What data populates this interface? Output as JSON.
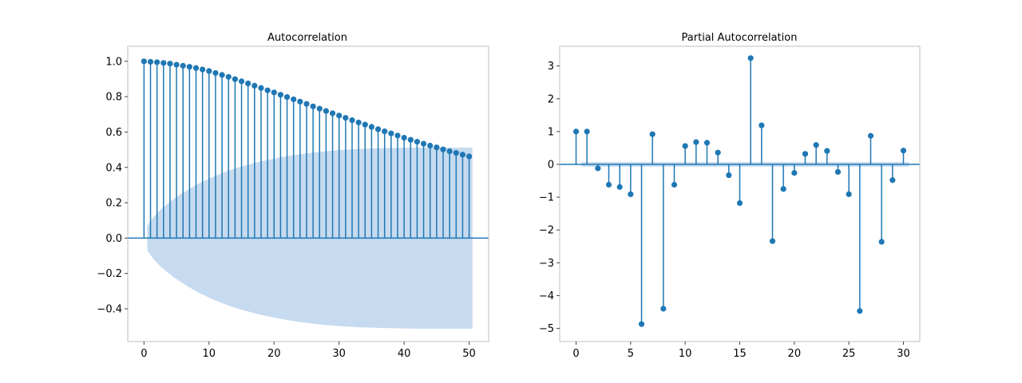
{
  "chart_data": [
    {
      "type": "stem",
      "title": "Autocorrelation",
      "xlabel": "",
      "ylabel": "",
      "xlim": [
        -2.5,
        53
      ],
      "ylim": [
        -0.585,
        1.085
      ],
      "xticks": [
        0,
        10,
        20,
        30,
        40,
        50
      ],
      "yticks": [
        -0.4,
        -0.2,
        0.0,
        0.2,
        0.4,
        0.6,
        0.8,
        1.0
      ],
      "ytick_labels": [
        "−0.4",
        "−0.2",
        "0.0",
        "0.2",
        "0.4",
        "0.6",
        "0.8",
        "1.0"
      ],
      "x": [
        0,
        1,
        2,
        3,
        4,
        5,
        6,
        7,
        8,
        9,
        10,
        11,
        12,
        13,
        14,
        15,
        16,
        17,
        18,
        19,
        20,
        21,
        22,
        23,
        24,
        25,
        26,
        27,
        28,
        29,
        30,
        31,
        32,
        33,
        34,
        35,
        36,
        37,
        38,
        39,
        40,
        41,
        42,
        43,
        44,
        45,
        46,
        47,
        48,
        49,
        50
      ],
      "values": [
        1.0,
        0.997,
        0.995,
        0.991,
        0.987,
        0.981,
        0.975,
        0.969,
        0.962,
        0.954,
        0.945,
        0.934,
        0.923,
        0.912,
        0.899,
        0.887,
        0.875,
        0.862,
        0.849,
        0.836,
        0.824,
        0.811,
        0.798,
        0.785,
        0.772,
        0.759,
        0.745,
        0.732,
        0.719,
        0.706,
        0.693,
        0.68,
        0.667,
        0.654,
        0.642,
        0.629,
        0.616,
        0.604,
        0.592,
        0.58,
        0.568,
        0.556,
        0.545,
        0.534,
        0.523,
        0.513,
        0.502,
        0.491,
        0.482,
        0.472,
        0.462
      ],
      "confidence_band": {
        "x_start": 0.5,
        "x_end": 50.5,
        "upper": [
          0.07,
          0.12,
          0.16,
          0.19,
          0.22,
          0.245,
          0.268,
          0.29,
          0.31,
          0.328,
          0.345,
          0.36,
          0.375,
          0.388,
          0.4,
          0.41,
          0.42,
          0.43,
          0.438,
          0.446,
          0.453,
          0.46,
          0.466,
          0.472,
          0.477,
          0.482,
          0.486,
          0.49,
          0.493,
          0.496,
          0.499,
          0.501,
          0.503,
          0.505,
          0.506,
          0.507,
          0.508,
          0.509,
          0.51,
          0.511,
          0.511,
          0.512,
          0.512,
          0.512,
          0.512,
          0.512,
          0.512,
          0.512,
          0.512,
          0.512,
          0.512
        ]
      },
      "grid": false,
      "color": "#1f77b4",
      "band_color": "#c6dbef"
    },
    {
      "type": "stem",
      "title": "Partial Autocorrelation",
      "xlabel": "",
      "ylabel": "",
      "xlim": [
        -1.5,
        31.5
      ],
      "ylim": [
        -5.4,
        3.6
      ],
      "xticks": [
        0,
        5,
        10,
        15,
        20,
        25,
        30
      ],
      "yticks": [
        -5,
        -4,
        -3,
        -2,
        -1,
        0,
        1,
        2,
        3
      ],
      "ytick_labels": [
        "−5",
        "−4",
        "−3",
        "−2",
        "−1",
        "0",
        "1",
        "2",
        "3"
      ],
      "x": [
        0,
        1,
        2,
        3,
        4,
        5,
        6,
        7,
        8,
        9,
        10,
        11,
        12,
        13,
        14,
        15,
        16,
        17,
        18,
        19,
        20,
        21,
        22,
        23,
        24,
        25,
        26,
        27,
        28,
        29,
        30
      ],
      "values": [
        1.0,
        1.0,
        -0.12,
        -0.62,
        -0.69,
        -0.91,
        -4.87,
        0.92,
        -4.4,
        -0.62,
        0.56,
        0.68,
        0.66,
        0.36,
        -0.33,
        -1.18,
        3.24,
        1.19,
        -2.34,
        -0.75,
        -0.26,
        0.32,
        0.59,
        0.41,
        -0.23,
        -0.91,
        -4.47,
        0.87,
        -2.36,
        -0.48,
        0.42
      ],
      "confidence_band": {
        "x_start": 0.5,
        "x_end": 30.5,
        "half_width": 0.07
      },
      "grid": false,
      "color": "#1f77b4",
      "band_color": "#c6dbef"
    }
  ]
}
